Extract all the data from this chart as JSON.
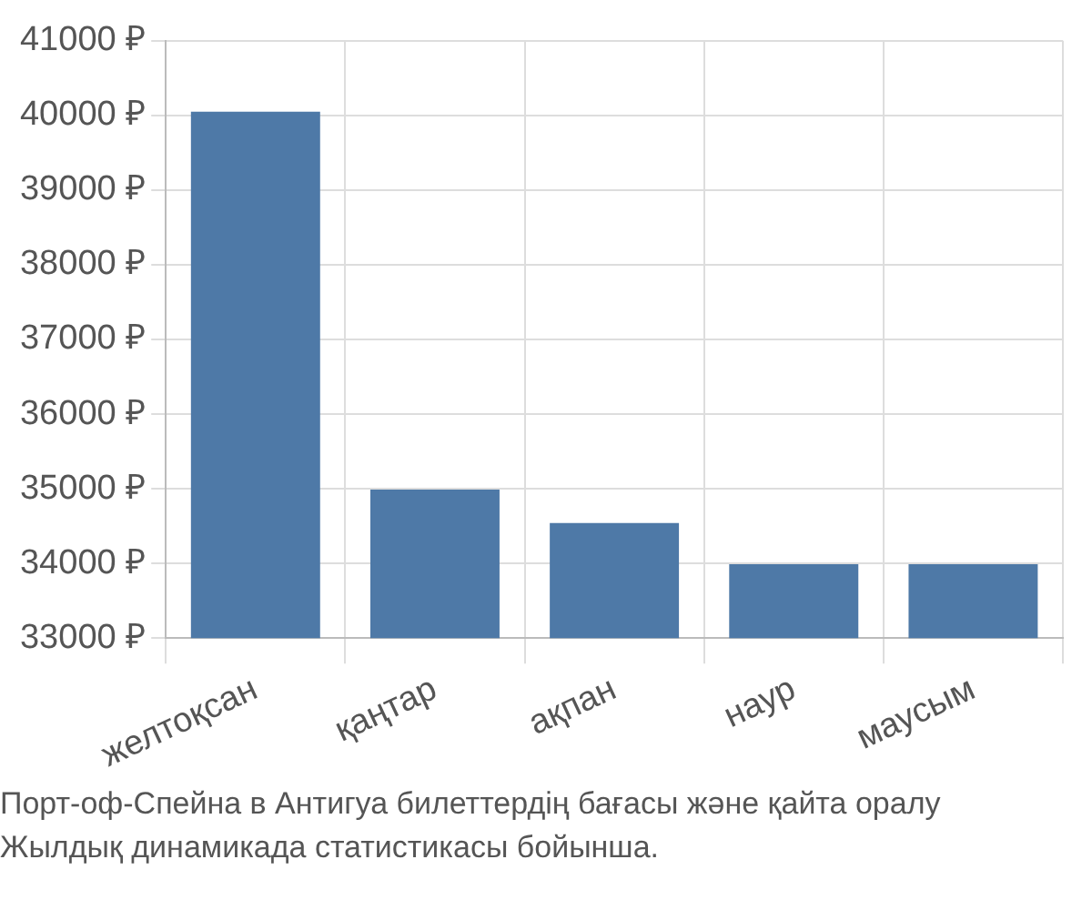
{
  "chart_data": {
    "type": "bar",
    "categories": [
      "желтоқсан",
      "қаңтар",
      "ақпан",
      "наур",
      "маусым"
    ],
    "values": [
      40050,
      34990,
      34540,
      33990,
      33990
    ],
    "color": "#4e79a7",
    "ylim": [
      33000,
      41000
    ],
    "yticks": [
      {
        "value": 33000,
        "label": "33000 ₽"
      },
      {
        "value": 34000,
        "label": "34000 ₽"
      },
      {
        "value": 35000,
        "label": "35000 ₽"
      },
      {
        "value": 36000,
        "label": "36000 ₽"
      },
      {
        "value": 37000,
        "label": "37000 ₽"
      },
      {
        "value": 38000,
        "label": "38000 ₽"
      },
      {
        "value": 39000,
        "label": "39000 ₽"
      },
      {
        "value": 40000,
        "label": "40000 ₽"
      },
      {
        "value": 41000,
        "label": "41000 ₽"
      }
    ],
    "grid": true,
    "annotations": [
      "Порт-оф-Спейна в Антигуа билеттердің бағасы және қайта оралу",
      "Жылдық динамикада статистикасы бойынша."
    ]
  }
}
